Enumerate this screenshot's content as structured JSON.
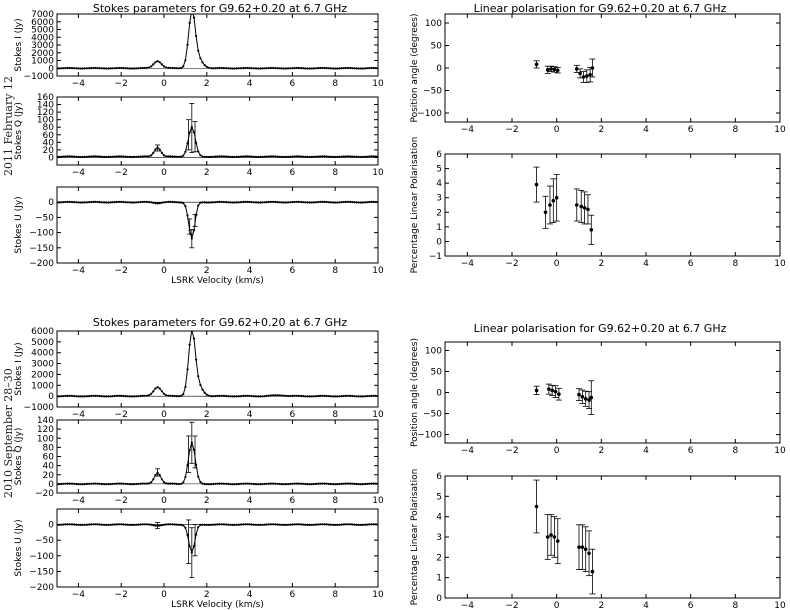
{
  "epochs": [
    {
      "label": "2011 February 12",
      "stokes_title": "Stokes parameters for G9.62+0.20 at 6.7 GHz",
      "lin_title": "Linear polarisation for G9.62+0.20 at 6.7 GHz"
    },
    {
      "label": "2010 September 28–30",
      "stokes_title": "Stokes parameters for G9.62+0.20 at 6.7 GHz",
      "lin_title": "Linear polarisation for G9.62+0.20 at 6.7 GHz"
    }
  ],
  "chart_data": [
    {
      "id": "e1_I",
      "type": "line",
      "epoch": 0,
      "panel": "I",
      "title": "Stokes parameters for G9.62+0.20 at 6.7 GHz",
      "ylabel": "Stokes I (Jy)",
      "xlabel": "",
      "xlim": [
        -5,
        10
      ],
      "ylim": [
        -1000,
        7000
      ],
      "xticks": [
        -4,
        -2,
        0,
        2,
        4,
        6,
        8,
        10
      ],
      "yticks": [
        -1000,
        0,
        1000,
        2000,
        3000,
        4000,
        5000,
        6000,
        7000
      ],
      "components": [
        {
          "x": -0.3,
          "amp": 950,
          "sigma": 0.18
        },
        {
          "x": 1.3,
          "amp": 6400,
          "sigma": 0.15
        },
        {
          "x": 1.5,
          "amp": 1500,
          "sigma": 0.25
        }
      ],
      "baseline": 0
    },
    {
      "id": "e1_Q",
      "type": "line",
      "epoch": 0,
      "panel": "Q",
      "ylabel": "Stokes Q (Jy)",
      "xlabel": "",
      "xlim": [
        -5,
        10
      ],
      "ylim": [
        -20,
        160
      ],
      "xticks": [
        -4,
        -2,
        0,
        2,
        4,
        6,
        8,
        10
      ],
      "yticks": [
        0,
        20,
        40,
        60,
        80,
        100,
        120,
        140,
        160
      ],
      "components": [
        {
          "x": -0.3,
          "amp": 25,
          "sigma": 0.15
        },
        {
          "x": 1.3,
          "amp": 78,
          "sigma": 0.16
        }
      ],
      "baseline": 2,
      "errorbars": [
        {
          "x": -0.3,
          "y": 25,
          "err": 8
        },
        {
          "x": 1.15,
          "y": 60,
          "err": 40
        },
        {
          "x": 1.3,
          "y": 78,
          "err": 65
        },
        {
          "x": 1.45,
          "y": 55,
          "err": 40
        }
      ]
    },
    {
      "id": "e1_U",
      "type": "line",
      "epoch": 0,
      "panel": "U",
      "ylabel": "Stokes U (Jy)",
      "xlabel": "LSRK Velocity (km/s)",
      "xlim": [
        -5,
        10
      ],
      "ylim": [
        -200,
        50
      ],
      "xticks": [
        -4,
        -2,
        0,
        2,
        4,
        6,
        8,
        10
      ],
      "yticks": [
        -200,
        -150,
        -100,
        -50,
        0
      ],
      "components": [
        {
          "x": -0.3,
          "amp": -3,
          "sigma": 0.15
        },
        {
          "x": 1.3,
          "amp": -120,
          "sigma": 0.14
        }
      ],
      "baseline": 0,
      "errorbars": [
        {
          "x": 1.2,
          "y": -80,
          "err": 25
        },
        {
          "x": 1.3,
          "y": -120,
          "err": 30
        },
        {
          "x": 1.45,
          "y": -60,
          "err": 20
        }
      ]
    },
    {
      "id": "e1_PA",
      "type": "scatter",
      "epoch": 0,
      "panel": "PA",
      "title": "Linear polarisation for G9.62+0.20 at 6.7 GHz",
      "ylabel": "Position angle (degrees)",
      "xlabel": "",
      "xlim": [
        -5,
        10
      ],
      "ylim": [
        -120,
        120
      ],
      "xticks": [
        -4,
        -2,
        0,
        2,
        4,
        6,
        8,
        10
      ],
      "yticks": [
        -100,
        -50,
        0,
        50,
        100
      ],
      "points": [
        {
          "x": -0.9,
          "y": 8,
          "err": 8
        },
        {
          "x": -0.4,
          "y": -4,
          "err": 8
        },
        {
          "x": -0.25,
          "y": -2,
          "err": 6
        },
        {
          "x": -0.1,
          "y": -3,
          "err": 6
        },
        {
          "x": 0.05,
          "y": -5,
          "err": 6
        },
        {
          "x": 0.9,
          "y": -2,
          "err": 8
        },
        {
          "x": 1.05,
          "y": -12,
          "err": 10
        },
        {
          "x": 1.2,
          "y": -20,
          "err": 12
        },
        {
          "x": 1.35,
          "y": -18,
          "err": 14
        },
        {
          "x": 1.5,
          "y": -15,
          "err": 16
        },
        {
          "x": 1.6,
          "y": 0,
          "err": 20
        }
      ]
    },
    {
      "id": "e1_PL",
      "type": "scatter",
      "epoch": 0,
      "panel": "PL",
      "ylabel": "Percentage Linear Polarisation",
      "xlabel": "",
      "xlim": [
        -5,
        10
      ],
      "ylim": [
        -1,
        6
      ],
      "xticks": [
        -4,
        -2,
        0,
        2,
        4,
        6,
        8,
        10
      ],
      "yticks": [
        -1,
        0,
        1,
        2,
        3,
        4,
        5,
        6
      ],
      "points": [
        {
          "x": -0.9,
          "y": 3.9,
          "err": 1.2
        },
        {
          "x": -0.5,
          "y": 2.0,
          "err": 1.1
        },
        {
          "x": -0.3,
          "y": 2.5,
          "err": 1.3
        },
        {
          "x": -0.15,
          "y": 2.8,
          "err": 1.5
        },
        {
          "x": 0.0,
          "y": 3.0,
          "err": 1.6
        },
        {
          "x": 0.9,
          "y": 2.5,
          "err": 1.1
        },
        {
          "x": 1.1,
          "y": 2.4,
          "err": 1.1
        },
        {
          "x": 1.25,
          "y": 2.3,
          "err": 1.1
        },
        {
          "x": 1.4,
          "y": 2.2,
          "err": 1.0
        },
        {
          "x": 1.55,
          "y": 0.8,
          "err": 1.0
        }
      ]
    },
    {
      "id": "e2_I",
      "type": "line",
      "epoch": 1,
      "panel": "I",
      "title": "Stokes parameters for G9.62+0.20 at 6.7 GHz",
      "ylabel": "Stokes I (Jy)",
      "xlabel": "",
      "xlim": [
        -5,
        10
      ],
      "ylim": [
        -1000,
        6000
      ],
      "xticks": [
        -4,
        -2,
        0,
        2,
        4,
        6,
        8,
        10
      ],
      "yticks": [
        -1000,
        0,
        1000,
        2000,
        3000,
        4000,
        5000,
        6000
      ],
      "components": [
        {
          "x": -0.3,
          "amp": 850,
          "sigma": 0.18
        },
        {
          "x": 1.3,
          "amp": 5200,
          "sigma": 0.15
        },
        {
          "x": 1.5,
          "amp": 1200,
          "sigma": 0.25
        },
        {
          "x": 5.4,
          "amp": 80,
          "sigma": 0.3
        }
      ],
      "baseline": 0
    },
    {
      "id": "e2_Q",
      "type": "line",
      "epoch": 1,
      "panel": "Q",
      "ylabel": "Stokes Q (Jy)",
      "xlabel": "",
      "xlim": [
        -5,
        10
      ],
      "ylim": [
        -20,
        140
      ],
      "xticks": [
        -4,
        -2,
        0,
        2,
        4,
        6,
        8,
        10
      ],
      "yticks": [
        -20,
        0,
        20,
        40,
        60,
        80,
        100,
        120,
        140
      ],
      "components": [
        {
          "x": -0.3,
          "amp": 25,
          "sigma": 0.15
        },
        {
          "x": 1.3,
          "amp": 90,
          "sigma": 0.16
        }
      ],
      "baseline": 0,
      "errorbars": [
        {
          "x": -0.3,
          "y": 25,
          "err": 8
        },
        {
          "x": 1.15,
          "y": 65,
          "err": 40
        },
        {
          "x": 1.3,
          "y": 90,
          "err": 45
        },
        {
          "x": 1.45,
          "y": 70,
          "err": 35
        }
      ]
    },
    {
      "id": "e2_U",
      "type": "line",
      "epoch": 1,
      "panel": "U",
      "ylabel": "Stokes U (Jy)",
      "xlabel": "LSRK Velocity (km/s)",
      "xlim": [
        -5,
        10
      ],
      "ylim": [
        -200,
        50
      ],
      "xticks": [
        -4,
        -2,
        0,
        2,
        4,
        6,
        8,
        10
      ],
      "yticks": [
        -200,
        -150,
        -100,
        -50,
        0
      ],
      "components": [
        {
          "x": -0.3,
          "amp": -3,
          "sigma": 0.15
        },
        {
          "x": 1.3,
          "amp": -90,
          "sigma": 0.14
        }
      ],
      "baseline": 0,
      "errorbars": [
        {
          "x": -0.3,
          "y": -3,
          "err": 10
        },
        {
          "x": 1.15,
          "y": -55,
          "err": 70
        },
        {
          "x": 1.3,
          "y": -90,
          "err": 80
        },
        {
          "x": 1.45,
          "y": -50,
          "err": 50
        }
      ]
    },
    {
      "id": "e2_PA",
      "type": "scatter",
      "epoch": 1,
      "panel": "PA",
      "title": "Linear polarisation for G9.62+0.20 at 6.7 GHz",
      "ylabel": "Position angle (degrees)",
      "xlabel": "",
      "xlim": [
        -5,
        10
      ],
      "ylim": [
        -120,
        120
      ],
      "xticks": [
        -4,
        -2,
        0,
        2,
        4,
        6,
        8,
        10
      ],
      "yticks": [
        -100,
        -50,
        0,
        50,
        100
      ],
      "points": [
        {
          "x": -0.9,
          "y": 5,
          "err": 10
        },
        {
          "x": -0.35,
          "y": 8,
          "err": 12
        },
        {
          "x": -0.2,
          "y": 5,
          "err": 12
        },
        {
          "x": -0.05,
          "y": 2,
          "err": 14
        },
        {
          "x": 0.1,
          "y": -4,
          "err": 14
        },
        {
          "x": 1.0,
          "y": -5,
          "err": 14
        },
        {
          "x": 1.15,
          "y": -10,
          "err": 16
        },
        {
          "x": 1.3,
          "y": -15,
          "err": 18
        },
        {
          "x": 1.45,
          "y": -18,
          "err": 20
        },
        {
          "x": 1.55,
          "y": -12,
          "err": 40
        }
      ]
    },
    {
      "id": "e2_PL",
      "type": "scatter",
      "epoch": 1,
      "panel": "PL",
      "ylabel": "Percentage Linear Polarisation",
      "xlabel": "",
      "xlim": [
        -5,
        10
      ],
      "ylim": [
        0,
        6
      ],
      "xticks": [
        -4,
        -2,
        0,
        2,
        4,
        6,
        8,
        10
      ],
      "yticks": [
        0,
        1,
        2,
        3,
        4,
        5,
        6
      ],
      "points": [
        {
          "x": -0.9,
          "y": 4.5,
          "err": 1.3
        },
        {
          "x": -0.4,
          "y": 3.0,
          "err": 1.1
        },
        {
          "x": -0.25,
          "y": 3.1,
          "err": 1.0
        },
        {
          "x": -0.1,
          "y": 3.0,
          "err": 1.0
        },
        {
          "x": 0.05,
          "y": 2.8,
          "err": 1.1
        },
        {
          "x": 1.0,
          "y": 2.5,
          "err": 1.1
        },
        {
          "x": 1.15,
          "y": 2.5,
          "err": 1.1
        },
        {
          "x": 1.3,
          "y": 2.4,
          "err": 1.1
        },
        {
          "x": 1.45,
          "y": 2.2,
          "err": 1.1
        },
        {
          "x": 1.6,
          "y": 1.3,
          "err": 1.1
        }
      ]
    }
  ]
}
